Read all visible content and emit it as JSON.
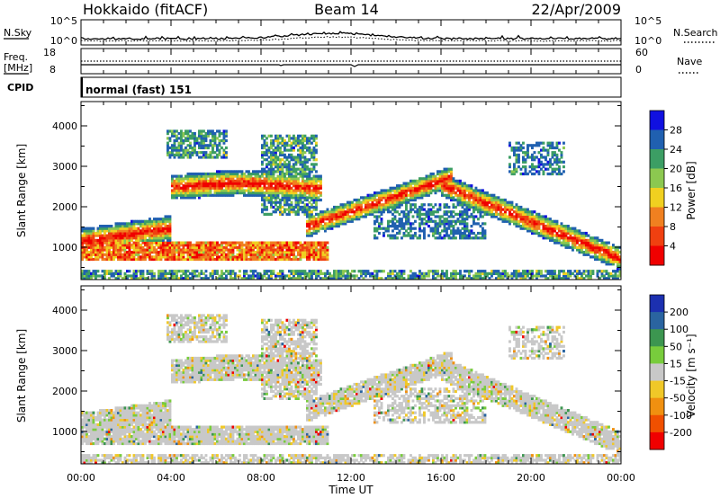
{
  "header": {
    "station": "Hokkaido (fitACF)",
    "beam": "Beam 14",
    "date": "22/Apr/2009"
  },
  "noise_panel": {
    "left_label": "N.Sky",
    "right_label": "N.Search",
    "left_ticks": [
      "10^5",
      "10^0"
    ],
    "right_ticks": [
      "10^5",
      "10^0"
    ]
  },
  "freq_panel": {
    "left_label_line1": "Freq.",
    "left_label_line2": "[MHz]",
    "left_ticks": [
      "18",
      "8"
    ],
    "right_label": "Nave",
    "right_ticks": [
      "60",
      "0"
    ]
  },
  "cpid_panel": {
    "label": "CPID",
    "program": "normal (fast) 151"
  },
  "chart_data": [
    {
      "type": "heatmap",
      "ylabel": "Slant Range [km]",
      "xlabel": "",
      "ylim": [
        200,
        4600
      ],
      "y_ticks": [
        "1000",
        "2000",
        "3000",
        "4000"
      ],
      "colorbar_label": "Power [dB]",
      "colorbar_ticks": [
        "4",
        "8",
        "12",
        "16",
        "20",
        "24",
        "28"
      ],
      "colorbar_colors": [
        "#1010e0",
        "#2060b0",
        "#3c9e64",
        "#8cc850",
        "#f0d020",
        "#f08020",
        "#f04010",
        "#f00000"
      ]
    },
    {
      "type": "heatmap",
      "ylabel": "Slant Range [km]",
      "xlabel": "Time UT",
      "ylim": [
        200,
        4600
      ],
      "y_ticks": [
        "1000",
        "2000",
        "3000",
        "4000"
      ],
      "x_ticks": [
        "00:00",
        "04:00",
        "08:00",
        "12:00",
        "16:00",
        "20:00",
        "00:00"
      ],
      "colorbar_label": "Velocity [m s⁻¹]",
      "colorbar_ticks": [
        "200",
        "100",
        "50",
        "15",
        "-15",
        "-50",
        "-100",
        "-200"
      ],
      "colorbar_colors": [
        "#1c30b0",
        "#2a64a0",
        "#3c9650",
        "#78cc3c",
        "#c8c8c8",
        "#f0c828",
        "#f09010",
        "#f05000",
        "#f00000"
      ]
    }
  ]
}
